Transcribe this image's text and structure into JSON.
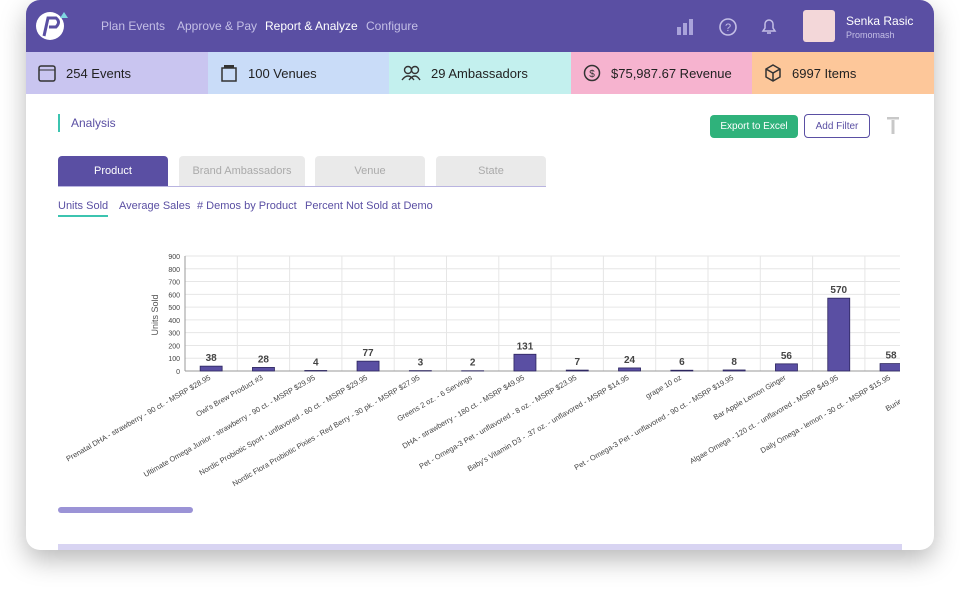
{
  "nav": {
    "items": [
      "Plan Events",
      "Approve & Pay",
      "Report & Analyze",
      "Configure"
    ]
  },
  "user": {
    "name": "Senka Rasic",
    "company": "Promomash"
  },
  "stats": [
    "254 Events",
    "100 Venues",
    "29 Ambassadors",
    "$75,987.67 Revenue",
    "6997 Items"
  ],
  "section": {
    "title": "Analysis"
  },
  "buttons": {
    "export": "Export to Excel",
    "filter": "Add Filter"
  },
  "tabs": [
    "Product",
    "Brand Ambassadors",
    "Venue",
    "State"
  ],
  "subtabs": [
    "Units Sold",
    "Average Sales",
    "# Demos by Product",
    "Percent Not Sold at Demo"
  ],
  "chart_data": {
    "type": "bar",
    "y_label": "Units Sold",
    "color": "#5a4fa3",
    "categories": [
      "Prenatal DHA - strawberry - 90 ct. - MSRP $28.95",
      "Owl's Brew Product #3",
      "Ultimate Omega Junior - strawberry - 90 ct. - MSRP $29.95",
      "Nordic Probiotic Sport - unflavored - 60 ct. - MSRP $29.95",
      "Nordic Flora Probiotic Pixies - Red Berry - 30 pk. - MSRP $27.95",
      "Greens 2 oz. - 6 Servings",
      "DHA - strawberry - 180 ct. - MSRP $49.95",
      "Pet - Omega-3 Pet - unflavored - 8 oz. - MSRP $23.95",
      "Baby's Vitamin D3 - .37 oz. - unflavored - MSRP $14.95",
      "grape 10 oz",
      "Pet - Omega-3 Pet - unflavored - 90 ct. - MSRP $19.95",
      "Bar Apple Lemon Ginger",
      "Algae Omega - 120 ct. - unflavored - MSRP $49.95",
      "Daily Omega - lemon - 30 ct. - MSRP $15.95",
      "Buried Treasure - A"
    ],
    "values": [
      38,
      28,
      4,
      77,
      3,
      2,
      131,
      7,
      24,
      6,
      8,
      56,
      570,
      58,
      null
    ],
    "ylim": [
      0,
      900
    ],
    "yticks": [
      0,
      100,
      200,
      300,
      400,
      500,
      600,
      700,
      800,
      900
    ],
    "grid": true
  }
}
